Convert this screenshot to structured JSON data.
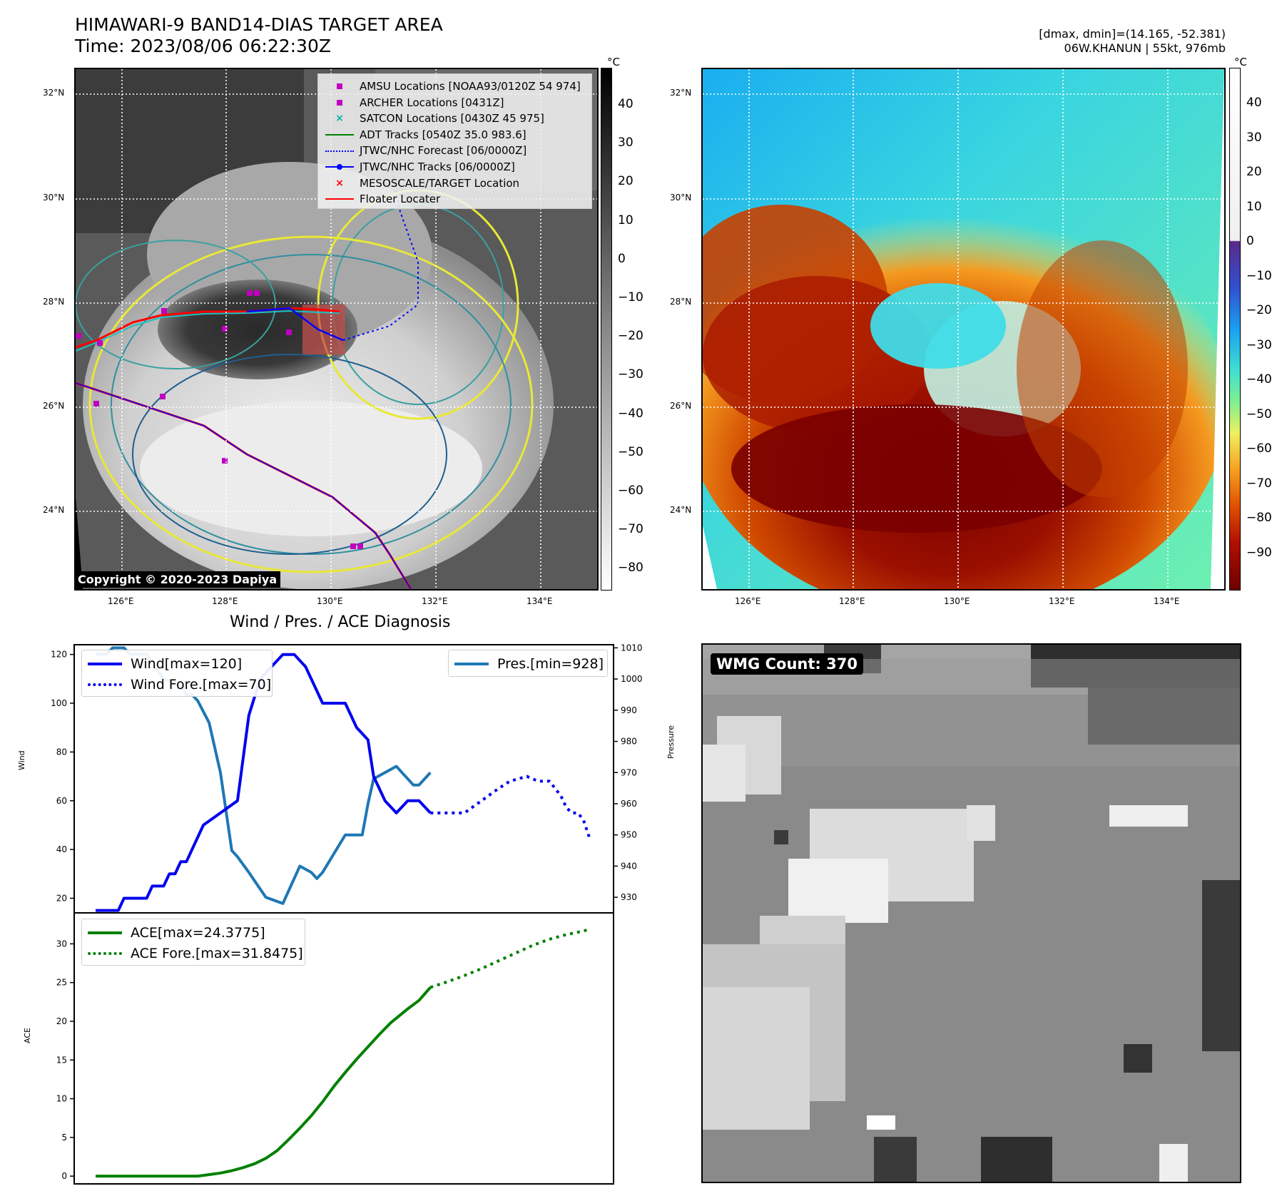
{
  "header": {
    "title_line1": "HIMAWARI-9 BAND14-DIAS TARGET AREA",
    "title_line2": "Time: 2023/08/06 06:22:30Z",
    "stats_line1": "[dmax, dmin]=(14.165, -52.381)",
    "stats_line2": "06W.KHANUN | 55kt, 976mb"
  },
  "map_axes": {
    "lat_labels": [
      "32°N",
      "30°N",
      "28°N",
      "26°N",
      "24°N"
    ],
    "lon_labels": [
      "126°E",
      "128°E",
      "130°E",
      "132°E",
      "134°E"
    ]
  },
  "gray_colorbar": {
    "unit": "°C",
    "ticks": [
      "40",
      "30",
      "20",
      "10",
      "0",
      "−10",
      "−20",
      "−30",
      "−40",
      "−50",
      "−60",
      "−70",
      "−80"
    ]
  },
  "color_colorbar": {
    "unit": "°C",
    "ticks": [
      "40",
      "30",
      "20",
      "10",
      "0",
      "−10",
      "−20",
      "−30",
      "−40",
      "−50",
      "−60",
      "−70",
      "−80",
      "−90"
    ]
  },
  "map_legend": {
    "items": [
      {
        "label": "AMSU Locations [NOAA93/0120Z 54 974]",
        "marker": "square",
        "color": "#c000c0"
      },
      {
        "label": "ARCHER Locations [0431Z]",
        "marker": "square",
        "color": "#c000c0"
      },
      {
        "label": "SATCON Locations [0430Z 45 975]",
        "marker": "x",
        "color": "#00b0b0"
      },
      {
        "label": "ADT Tracks [0540Z 35.0 983.6]",
        "marker": "line",
        "color": "#008000"
      },
      {
        "label": "JTWC/NHC Forecast [06/0000Z]",
        "marker": "dotted",
        "color": "#0000ff"
      },
      {
        "label": "JTWC/NHC Tracks [06/0000Z]",
        "marker": "line-dot",
        "color": "#0000ff"
      },
      {
        "label": "MESOSCALE/TARGET Location",
        "marker": "x",
        "color": "#ff0000"
      },
      {
        "label": "Floater Locater",
        "marker": "line",
        "color": "#ff0000"
      }
    ]
  },
  "copyright": "Copyright © 2020-2023 Dapiya",
  "diagnosis": {
    "title": "Wind / Pres. / ACE Diagnosis",
    "wind_ylabel": "Wind",
    "pressure_ylabel": "Pressure",
    "ace_ylabel": "ACE",
    "wind_legend": "Wind[max=120]",
    "wind_fore_legend": "Wind Fore.[max=70]",
    "pres_legend": "Pres.[min=928]",
    "ace_legend": "ACE[max=24.3775]",
    "ace_fore_legend": "ACE Fore.[max=31.8475]"
  },
  "wmg_label": "WMG Count: 370",
  "colors": {
    "wind": "#0000ee",
    "pressure": "#1f77b4",
    "ace": "#008000"
  },
  "chart_data": [
    {
      "type": "line",
      "title": "Wind / Pres. / ACE Diagnosis",
      "ylabel": "Wind",
      "ylim": [
        14,
        124
      ],
      "yticks": [
        20,
        40,
        60,
        80,
        100,
        120
      ],
      "series": [
        {
          "name": "Wind[max=120]",
          "style": "solid",
          "x": [
            0,
            4,
            5,
            9,
            10,
            12,
            13,
            14,
            15,
            16,
            17,
            19,
            25,
            27,
            29,
            31,
            33,
            35,
            37,
            39,
            40,
            42,
            44,
            46,
            48,
            49,
            51,
            53,
            55,
            57,
            59
          ],
          "values": [
            15,
            15,
            20,
            20,
            25,
            25,
            30,
            30,
            35,
            35,
            40,
            50,
            60,
            95,
            110,
            115,
            120,
            120,
            115,
            105,
            100,
            100,
            100,
            90,
            85,
            70,
            60,
            55,
            60,
            60,
            55
          ]
        },
        {
          "name": "Wind Fore.[max=70]",
          "style": "dotted",
          "x": [
            59,
            62,
            65,
            68,
            71,
            73,
            76,
            78,
            80,
            82,
            83,
            84,
            85,
            86,
            87
          ],
          "values": [
            55,
            55,
            55,
            60,
            65,
            68,
            70,
            68,
            68,
            62,
            57,
            55,
            55,
            52,
            45
          ]
        }
      ]
    },
    {
      "type": "line",
      "ylabel": "Pressure",
      "ylim": [
        925,
        1011
      ],
      "yticks": [
        930,
        940,
        950,
        960,
        970,
        980,
        990,
        1000,
        1010
      ],
      "series": [
        {
          "name": "Pres.[min=928]",
          "style": "solid",
          "x": [
            0,
            2,
            3,
            4,
            5,
            6,
            9,
            10,
            12,
            15,
            16,
            17,
            18,
            20,
            22,
            24,
            25,
            27,
            30,
            33,
            34,
            36,
            38,
            39,
            40,
            42,
            44,
            45,
            47,
            48,
            49,
            50,
            51,
            53,
            54,
            55,
            56,
            57,
            58,
            59
          ],
          "values": [
            1008,
            1008,
            1010,
            1010,
            1010,
            1008,
            1008,
            1005,
            1000,
            998,
            995,
            995,
            993,
            986,
            970,
            945,
            943,
            938,
            930,
            928,
            932,
            940,
            938,
            936,
            938,
            944,
            950,
            950,
            950,
            960,
            968,
            969,
            970,
            972,
            970,
            968,
            966,
            966,
            968,
            970
          ]
        }
      ]
    },
    {
      "type": "line",
      "ylabel": "ACE",
      "ylim": [
        -1,
        34
      ],
      "yticks": [
        0,
        5,
        10,
        15,
        20,
        25,
        30
      ],
      "series": [
        {
          "name": "ACE[max=24.3775]",
          "style": "solid",
          "x": [
            0,
            4,
            8,
            12,
            14,
            16,
            18,
            20,
            22,
            24,
            26,
            28,
            30,
            32,
            34,
            36,
            38,
            40,
            42,
            44,
            46,
            48,
            50,
            52,
            55,
            57,
            59
          ],
          "values": [
            0,
            0,
            0,
            0,
            0,
            0,
            0,
            0.2,
            0.4,
            0.7,
            1.1,
            1.6,
            2.3,
            3.3,
            4.7,
            6.2,
            7.8,
            9.6,
            11.6,
            13.4,
            15.1,
            16.7,
            18.3,
            19.8,
            21.6,
            22.7,
            24.38
          ]
        },
        {
          "name": "ACE Fore.[max=31.8475]",
          "style": "dotted",
          "x": [
            59,
            62,
            65,
            68,
            71,
            74,
            77,
            80,
            83,
            85,
            87
          ],
          "values": [
            24.38,
            25.1,
            25.9,
            26.8,
            27.8,
            28.8,
            29.8,
            30.6,
            31.2,
            31.5,
            31.85
          ]
        }
      ]
    }
  ]
}
